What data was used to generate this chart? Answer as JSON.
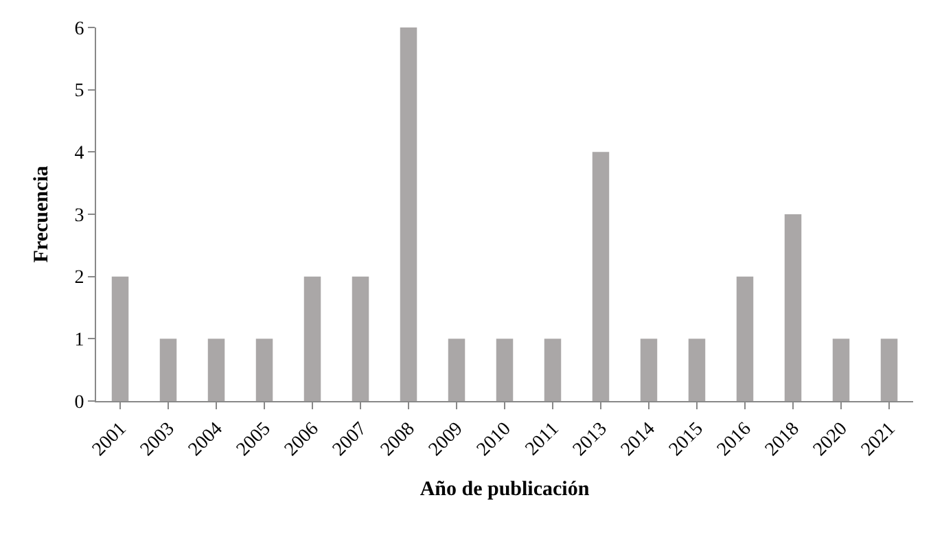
{
  "chart_data": {
    "type": "bar",
    "xlabel": "Año de publicación",
    "ylabel": "Frecuencia",
    "categories": [
      "2001",
      "2003",
      "2004",
      "2005",
      "2006",
      "2007",
      "2008",
      "2009",
      "2010",
      "2011",
      "2013",
      "2014",
      "2015",
      "2016",
      "2018",
      "2020",
      "2021"
    ],
    "values": [
      2,
      1,
      1,
      1,
      2,
      2,
      6,
      1,
      1,
      1,
      4,
      1,
      1,
      2,
      3,
      1,
      1
    ],
    "color": "#aaa7a7",
    "ylim": [
      0,
      6
    ],
    "yticks": [
      0,
      1,
      2,
      3,
      4,
      5,
      6
    ]
  }
}
